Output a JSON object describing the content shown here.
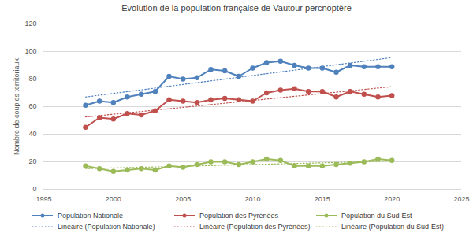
{
  "chart_data": {
    "type": "line",
    "title": "Evolution de la population française de Vautour percnoptère",
    "y_label": "Nombre de couples territoriaux",
    "x": [
      1998,
      1999,
      2000,
      2001,
      2002,
      2003,
      2004,
      2005,
      2006,
      2007,
      2008,
      2009,
      2010,
      2011,
      2012,
      2013,
      2014,
      2015,
      2016,
      2017,
      2018,
      2019,
      2020
    ],
    "series": [
      {
        "name": "Population Nationale",
        "color": "#4F81BD",
        "marker": "circle",
        "line_style": "solid",
        "values": [
          61,
          64,
          63,
          67,
          69,
          71,
          82,
          80,
          81,
          87,
          86,
          82,
          88,
          92,
          93,
          90,
          88,
          88,
          85,
          90,
          89,
          89,
          89
        ]
      },
      {
        "name": "Population des Pyrénées",
        "color": "#C0504D",
        "marker": "circle",
        "line_style": "solid",
        "values": [
          45,
          52,
          51,
          55,
          54,
          57,
          65,
          64,
          63,
          65,
          66,
          65,
          64,
          70,
          72,
          73,
          71,
          71,
          67,
          71,
          69,
          67,
          68
        ]
      },
      {
        "name": "Population du Sud-Est",
        "color": "#9BBB59",
        "marker": "circle",
        "line_style": "solid",
        "values": [
          17,
          15,
          13,
          14,
          15,
          14,
          17,
          16,
          18,
          20,
          20,
          18,
          20,
          22,
          21,
          17,
          17,
          17,
          18,
          19,
          20,
          22,
          21
        ]
      },
      {
        "name": "Linéaire (Population Nationale)",
        "color": "#4F81BD",
        "marker": "none",
        "line_style": "dotted",
        "values": [
          67,
          68.3,
          69.6,
          70.9,
          72.2,
          73.5,
          74.8,
          76.1,
          77.4,
          78.7,
          80,
          81.3,
          82.6,
          83.9,
          85.2,
          86.5,
          87.8,
          89.1,
          90.4,
          91.7,
          93,
          94.3,
          95.6
        ]
      },
      {
        "name": "Linéaire (Population des Pyrénées)",
        "color": "#C0504D",
        "marker": "none",
        "line_style": "dotted",
        "values": [
          52.5,
          53.5,
          54.5,
          55.5,
          56.5,
          57.5,
          58.5,
          59.5,
          60.5,
          61.5,
          62.5,
          63.5,
          64.5,
          65.5,
          66.5,
          67.5,
          68.5,
          69.5,
          70.5,
          71.5,
          72.5,
          73.5,
          74.5
        ]
      },
      {
        "name": "Linéaire (Population du Sud-Est)",
        "color": "#9BBB59",
        "marker": "none",
        "line_style": "dotted",
        "values": [
          15,
          15.25,
          15.5,
          15.75,
          16,
          16.25,
          16.5,
          16.75,
          17,
          17.25,
          17.5,
          17.75,
          18,
          18.25,
          18.5,
          18.75,
          19,
          19.25,
          19.5,
          19.75,
          20,
          20.25,
          20.5
        ]
      }
    ],
    "xlim": [
      1995,
      2025
    ],
    "xticks": [
      1995,
      2000,
      2005,
      2010,
      2015,
      2020,
      2025
    ],
    "ylim": [
      0,
      120
    ],
    "yticks": [
      0,
      20,
      40,
      60,
      80,
      100,
      120
    ],
    "grid": true,
    "legend": "bottom"
  }
}
